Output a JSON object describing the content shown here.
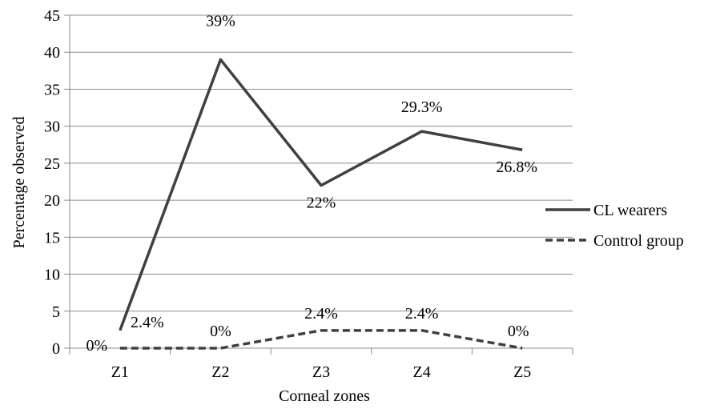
{
  "chart_data": {
    "type": "line",
    "categories": [
      "Z1",
      "Z2",
      "Z3",
      "Z4",
      "Z5"
    ],
    "xlabel": "Corneal zones",
    "ylabel": "Percentage observed",
    "ylim": [
      0,
      45
    ],
    "yticks": [
      0,
      5,
      10,
      15,
      20,
      25,
      30,
      35,
      40,
      45
    ],
    "grid": true,
    "legend": "right",
    "series": [
      {
        "name": "CL wearers",
        "values": [
          2.4,
          39,
          22,
          29.3,
          26.8
        ],
        "labels": [
          "2.4%",
          "39%",
          "22%",
          "29.3%",
          "26.8%"
        ],
        "color": "#404040",
        "dash": "solid"
      },
      {
        "name": "Control group",
        "values": [
          0,
          0,
          2.4,
          2.4,
          0
        ],
        "labels": [
          "0%",
          "0%",
          "2.4%",
          "2.4%",
          "0%"
        ],
        "color": "#404040",
        "dash": "dashed"
      }
    ]
  }
}
